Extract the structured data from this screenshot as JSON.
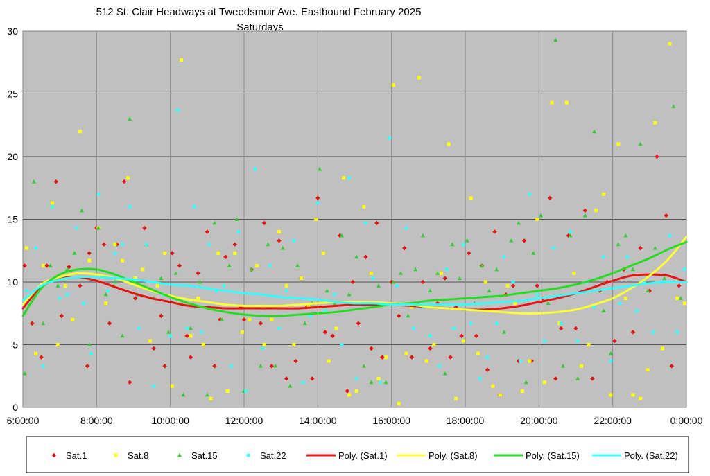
{
  "chart_data": {
    "type": "scatter",
    "title": "512 St. Clair Headways at Tweedsmuir Ave. Eastbound February 2025",
    "subtitle": "Saturdays",
    "xlabel": "",
    "ylabel": "",
    "xlim": [
      6,
      24
    ],
    "ylim": [
      0,
      30
    ],
    "x_ticks": [
      "6:00:00",
      "8:00:00",
      "10:00:00",
      "12:00:00",
      "14:00:00",
      "16:00:00",
      "18:00:00",
      "20:00:00",
      "22:00:00",
      "0:00:00"
    ],
    "y_ticks": [
      "0",
      "5",
      "10",
      "15",
      "20",
      "25",
      "30"
    ],
    "grid": true,
    "legend_position": "bottom",
    "series": [
      {
        "name": "Sat.1",
        "marker": "diamond",
        "color": "#e8120e",
        "x": [
          6.05,
          6.25,
          6.5,
          6.65,
          6.9,
          7.05,
          7.25,
          7.55,
          7.75,
          7.8,
          8.0,
          8.2,
          8.35,
          8.55,
          8.75,
          8.9,
          9.05,
          9.3,
          9.55,
          9.75,
          9.85,
          10.05,
          10.25,
          10.45,
          10.55,
          10.75,
          11.0,
          11.2,
          11.35,
          11.5,
          11.75,
          11.9,
          12.0,
          12.2,
          12.45,
          12.55,
          12.75,
          12.95,
          13.15,
          13.4,
          13.55,
          13.7,
          13.85,
          14.0,
          14.2,
          14.4,
          14.6,
          14.8,
          14.95,
          15.1,
          15.3,
          15.45,
          15.6,
          15.75,
          16.0,
          16.2,
          16.35,
          16.55,
          16.7,
          16.85,
          17.05,
          17.25,
          17.45,
          17.6,
          17.75,
          17.9,
          18.1,
          18.3,
          18.45,
          18.6,
          18.8,
          18.95,
          19.1,
          19.3,
          19.45,
          19.6,
          19.8,
          19.95,
          20.1,
          20.3,
          20.45,
          20.6,
          20.8,
          21.0,
          21.25,
          21.45,
          21.65,
          21.85,
          22.05,
          22.3,
          22.55,
          22.75,
          23.0,
          23.2,
          23.45,
          23.6,
          23.8
        ],
        "y": [
          11.3,
          6.7,
          4.0,
          11.3,
          18.0,
          7.3,
          11.2,
          9.7,
          3.3,
          12.3,
          14.3,
          13.0,
          6.7,
          13.0,
          18.0,
          2.0,
          8.7,
          14.3,
          4.7,
          7.3,
          3.3,
          12.3,
          11.3,
          5.7,
          4.0,
          10.7,
          14.0,
          3.3,
          7.0,
          12.0,
          13.0,
          8.0,
          7.0,
          11.0,
          6.7,
          14.7,
          3.3,
          13.3,
          2.3,
          3.7,
          10.3,
          8.0,
          2.3,
          16.7,
          6.0,
          5.7,
          13.7,
          1.3,
          10.0,
          6.7,
          12.0,
          4.7,
          14.7,
          4.0,
          10.0,
          7.3,
          12.7,
          4.0,
          8.3,
          10.0,
          4.7,
          8.3,
          10.3,
          4.0,
          8.0,
          5.7,
          12.3,
          5.7,
          11.3,
          3.0,
          14.0,
          1.0,
          9.0,
          9.7,
          3.7,
          13.3,
          3.7,
          9.7,
          8.7,
          16.7,
          2.3,
          6.3,
          13.7,
          6.3,
          15.7,
          2.3,
          9.3,
          10.0,
          5.3,
          11.0,
          6.0,
          12.7,
          9.3,
          20.0,
          15.3,
          3.3,
          9.7
        ]
      },
      {
        "name": "Sat.8",
        "marker": "square",
        "color": "#ffff00",
        "x": [
          6.1,
          6.35,
          6.55,
          6.8,
          6.95,
          7.15,
          7.35,
          7.55,
          7.8,
          8.05,
          8.25,
          8.5,
          8.7,
          8.85,
          9.05,
          9.25,
          9.45,
          9.65,
          9.85,
          10.05,
          10.3,
          10.55,
          10.75,
          10.9,
          11.1,
          11.3,
          11.55,
          11.75,
          11.95,
          12.15,
          12.35,
          12.55,
          12.75,
          12.95,
          13.15,
          13.35,
          13.55,
          13.75,
          13.95,
          14.15,
          14.3,
          14.5,
          14.7,
          14.85,
          15.05,
          15.25,
          15.45,
          15.65,
          15.85,
          16.05,
          16.2,
          16.4,
          16.55,
          16.75,
          16.95,
          17.15,
          17.35,
          17.55,
          17.75,
          17.95,
          18.15,
          18.35,
          18.55,
          18.75,
          18.95,
          19.15,
          19.35,
          19.55,
          19.75,
          19.95,
          20.15,
          20.35,
          20.55,
          20.75,
          20.95,
          21.15,
          21.35,
          21.55,
          21.75,
          21.95,
          22.15,
          22.35,
          22.55,
          22.75,
          22.95,
          23.15,
          23.35,
          23.55,
          23.75,
          23.95
        ],
        "y": [
          12.7,
          4.3,
          11.3,
          16.3,
          5.0,
          9.7,
          7.0,
          22.0,
          11.7,
          14.3,
          8.3,
          13.0,
          11.7,
          18.3,
          10.3,
          11.0,
          5.3,
          9.7,
          12.3,
          1.7,
          27.7,
          5.7,
          8.7,
          5.0,
          0.7,
          12.3,
          1.3,
          12.3,
          6.0,
          7.0,
          11.3,
          5.0,
          7.0,
          14.0,
          9.7,
          5.0,
          10.3,
          8.0,
          15.0,
          12.3,
          3.7,
          6.3,
          18.3,
          1.0,
          1.3,
          16.0,
          10.7,
          2.3,
          4.0,
          25.7,
          0.3,
          4.3,
          8.0,
          26.3,
          3.7,
          5.0,
          10.7,
          21.0,
          0.7,
          5.3,
          16.7,
          4.3,
          10.0,
          1.7,
          1.0,
          9.7,
          8.3,
          1.3,
          3.7,
          15.0,
          2.0,
          24.3,
          6.7,
          24.3,
          10.7,
          3.3,
          5.0,
          15.7,
          17.0,
          1.0,
          21.0,
          8.7,
          1.0,
          0.7,
          3.0,
          22.7,
          4.7,
          29.0,
          8.7,
          8.3
        ]
      },
      {
        "name": "Sat.15",
        "marker": "triangle",
        "color": "#33cc33",
        "x": [
          6.05,
          6.3,
          6.55,
          6.75,
          6.95,
          7.2,
          7.4,
          7.6,
          7.8,
          8.05,
          8.25,
          8.5,
          8.7,
          8.9,
          9.1,
          9.35,
          9.55,
          9.75,
          9.95,
          10.15,
          10.35,
          10.55,
          10.8,
          11.0,
          11.2,
          11.4,
          11.6,
          11.8,
          12.0,
          12.2,
          12.45,
          12.65,
          12.85,
          13.05,
          13.25,
          13.45,
          13.65,
          13.85,
          14.05,
          14.25,
          14.45,
          14.65,
          14.85,
          15.05,
          15.25,
          15.45,
          15.65,
          15.85,
          16.05,
          16.25,
          16.45,
          16.65,
          16.85,
          17.05,
          17.25,
          17.45,
          17.65,
          17.85,
          18.05,
          18.25,
          18.45,
          18.65,
          18.85,
          19.05,
          19.25,
          19.45,
          19.65,
          19.85,
          20.05,
          20.25,
          20.45,
          20.65,
          20.85,
          21.05,
          21.25,
          21.5,
          21.75,
          21.95,
          22.15,
          22.35,
          22.55,
          22.75,
          22.95,
          23.15,
          23.4,
          23.65,
          23.85
        ],
        "y": [
          2.7,
          18.0,
          6.7,
          11.3,
          9.7,
          11.0,
          12.3,
          15.7,
          5.0,
          14.3,
          9.0,
          10.0,
          5.7,
          23.0,
          9.0,
          13.0,
          8.7,
          10.3,
          6.0,
          10.7,
          1.0,
          6.3,
          10.0,
          1.0,
          14.7,
          7.0,
          11.3,
          15.0,
          1.3,
          11.0,
          3.3,
          13.0,
          3.3,
          12.7,
          1.7,
          11.3,
          6.7,
          8.3,
          19.0,
          9.3,
          8.3,
          13.7,
          9.0,
          12.0,
          3.3,
          2.0,
          9.7,
          2.0,
          10.0,
          10.7,
          7.3,
          11.0,
          13.7,
          9.3,
          10.7,
          2.7,
          13.0,
          10.3,
          13.3,
          8.3,
          11.3,
          9.3,
          11.0,
          6.0,
          13.3,
          14.7,
          2.0,
          12.3,
          15.3,
          8.3,
          29.3,
          3.3,
          13.7,
          2.3,
          15.3,
          22.0,
          7.7,
          4.3,
          13.0,
          13.7,
          11.0,
          21.0,
          9.3,
          12.7,
          10.3,
          24.0,
          8.7
        ]
      },
      {
        "name": "Sat.22",
        "marker": "circle",
        "color": "#33ffff",
        "x": [
          6.1,
          6.35,
          6.55,
          6.8,
          7.0,
          7.2,
          7.45,
          7.65,
          7.85,
          8.05,
          8.3,
          8.5,
          8.7,
          8.9,
          9.15,
          9.35,
          9.55,
          9.8,
          10.0,
          10.2,
          10.45,
          10.65,
          10.85,
          11.05,
          11.25,
          11.45,
          11.65,
          11.85,
          12.05,
          12.3,
          12.5,
          12.7,
          12.95,
          13.15,
          13.35,
          13.6,
          13.8,
          14.0,
          14.2,
          14.45,
          14.65,
          14.85,
          15.05,
          15.3,
          15.5,
          15.7,
          15.95,
          16.15,
          16.4,
          16.6,
          16.85,
          17.05,
          17.3,
          17.5,
          17.7,
          17.95,
          18.15,
          18.4,
          18.6,
          18.85,
          19.05,
          19.3,
          19.5,
          19.75,
          19.95,
          20.15,
          20.4,
          20.6,
          20.85,
          21.05,
          21.3,
          21.5,
          21.75,
          21.95,
          22.2,
          22.4,
          22.65,
          22.85,
          23.1,
          23.35,
          23.55,
          23.75,
          23.95
        ],
        "y": [
          9.3,
          12.7,
          3.3,
          16.0,
          8.7,
          9.0,
          14.3,
          8.3,
          4.3,
          17.0,
          9.3,
          12.3,
          13.0,
          16.0,
          6.3,
          13.0,
          1.7,
          9.0,
          5.7,
          23.7,
          6.3,
          16.0,
          6.0,
          13.0,
          9.3,
          9.7,
          3.3,
          14.0,
          1.3,
          19.0,
          4.7,
          11.3,
          6.3,
          9.3,
          13.3,
          2.0,
          7.3,
          16.3,
          7.7,
          9.0,
          5.0,
          18.3,
          2.3,
          14.7,
          10.3,
          2.0,
          21.5,
          9.7,
          14.3,
          6.3,
          8.0,
          5.7,
          3.3,
          11.0,
          6.3,
          13.0,
          6.7,
          2.3,
          4.0,
          6.7,
          12.0,
          10.0,
          3.7,
          17.0,
          9.0,
          5.3,
          12.7,
          6.7,
          14.0,
          5.3,
          10.0,
          8.0,
          12.0,
          3.7,
          8.3,
          12.0,
          7.7,
          10.0,
          6.0,
          10.0,
          13.7,
          6.0,
          11.0
        ]
      }
    ],
    "trendlines": [
      {
        "name": "Poly. (Sat.1)",
        "color": "#e8120e",
        "type": "polynomial",
        "x": [
          6,
          6.5,
          7,
          7.5,
          8,
          8.5,
          9,
          9.5,
          10,
          10.5,
          11,
          11.5,
          12,
          12.5,
          13,
          13.5,
          14,
          14.5,
          15,
          15.5,
          16,
          16.5,
          17,
          17.5,
          18,
          18.5,
          19,
          19.5,
          20,
          20.5,
          21,
          21.5,
          22,
          22.5,
          23,
          23.5,
          24
        ],
        "y": [
          7.9,
          9.6,
          10.3,
          10.4,
          10.1,
          9.6,
          9.1,
          8.7,
          8.4,
          8.1,
          8.0,
          7.9,
          7.9,
          7.9,
          7.9,
          7.9,
          8.0,
          8.1,
          8.2,
          8.2,
          8.2,
          8.1,
          8.0,
          7.9,
          7.8,
          7.8,
          7.9,
          8.1,
          8.4,
          8.7,
          9.1,
          9.6,
          10.1,
          10.5,
          10.6,
          10.5,
          10.0
        ]
      },
      {
        "name": "Poly. (Sat.8)",
        "color": "#ffff33",
        "type": "polynomial",
        "x": [
          6,
          6.5,
          7,
          7.5,
          8,
          8.5,
          9,
          9.5,
          10,
          10.5,
          11,
          11.5,
          12,
          12.5,
          13,
          13.5,
          14,
          14.5,
          15,
          15.5,
          16,
          16.5,
          17,
          17.5,
          18,
          18.5,
          19,
          19.5,
          20,
          20.5,
          21,
          21.5,
          22,
          22.5,
          23,
          23.5,
          24
        ],
        "y": [
          8.2,
          9.8,
          10.4,
          10.7,
          10.6,
          10.3,
          9.8,
          9.3,
          8.9,
          8.6,
          8.4,
          8.2,
          8.1,
          8.1,
          8.1,
          8.2,
          8.3,
          8.4,
          8.4,
          8.4,
          8.3,
          8.2,
          8.0,
          7.9,
          7.8,
          7.7,
          7.6,
          7.5,
          7.5,
          7.6,
          7.8,
          8.2,
          8.7,
          9.5,
          10.5,
          11.8,
          13.6
        ]
      },
      {
        "name": "Poly. (Sat.15)",
        "color": "#22dd22",
        "type": "polynomial",
        "x": [
          6,
          6.5,
          7,
          7.5,
          8,
          8.5,
          9,
          9.5,
          10,
          10.5,
          11,
          11.5,
          12,
          12.5,
          13,
          13.5,
          14,
          14.5,
          15,
          15.5,
          16,
          16.5,
          17,
          17.5,
          18,
          18.5,
          19,
          19.5,
          20,
          20.5,
          21,
          21.5,
          22,
          22.5,
          23,
          23.5,
          24
        ],
        "y": [
          7.3,
          9.5,
          10.6,
          11.0,
          11.0,
          10.6,
          10.0,
          9.4,
          8.8,
          8.3,
          7.9,
          7.6,
          7.4,
          7.3,
          7.3,
          7.4,
          7.5,
          7.6,
          7.8,
          8.0,
          8.2,
          8.3,
          8.5,
          8.6,
          8.7,
          8.8,
          8.9,
          9.1,
          9.3,
          9.5,
          9.8,
          10.2,
          10.7,
          11.3,
          11.9,
          12.6,
          13.2
        ]
      },
      {
        "name": "Poly. (Sat.22)",
        "color": "#33ffff",
        "type": "polynomial",
        "x": [
          6,
          6.5,
          7,
          7.5,
          8,
          8.5,
          9,
          9.5,
          10,
          10.5,
          11,
          11.5,
          12,
          12.5,
          13,
          13.5,
          14,
          14.5,
          15,
          15.5,
          16,
          16.5,
          17,
          17.5,
          18,
          18.5,
          19,
          19.5,
          20,
          20.5,
          21,
          21.5,
          22,
          22.5,
          23,
          23.5,
          24
        ],
        "y": [
          8.5,
          9.7,
          10.2,
          10.4,
          10.4,
          10.3,
          10.2,
          10.0,
          9.8,
          9.7,
          9.5,
          9.3,
          9.1,
          9.0,
          8.8,
          8.7,
          8.6,
          8.4,
          8.3,
          8.3,
          8.2,
          8.2,
          8.2,
          8.2,
          8.2,
          8.3,
          8.4,
          8.5,
          8.7,
          8.9,
          9.1,
          9.3,
          9.5,
          9.7,
          9.9,
          10.0,
          10.0
        ]
      }
    ],
    "legend": [
      {
        "label": "Sat.1",
        "kind": "marker",
        "marker": "diamond",
        "color": "#e8120e"
      },
      {
        "label": "Sat.8",
        "kind": "marker",
        "marker": "square",
        "color": "#ffff00"
      },
      {
        "label": "Sat.15",
        "kind": "marker",
        "marker": "triangle",
        "color": "#33cc33"
      },
      {
        "label": "Sat.22",
        "kind": "marker",
        "marker": "circle",
        "color": "#33ffff"
      },
      {
        "label": "Poly. (Sat.1)",
        "kind": "line",
        "color": "#e8120e"
      },
      {
        "label": "Poly. (Sat.8)",
        "kind": "line",
        "color": "#ffff33"
      },
      {
        "label": "Poly. (Sat.15)",
        "kind": "line",
        "color": "#22dd22"
      },
      {
        "label": "Poly. (Sat.22)",
        "kind": "line",
        "color": "#33ffff"
      }
    ],
    "plot_background": "#c0c0c0"
  }
}
